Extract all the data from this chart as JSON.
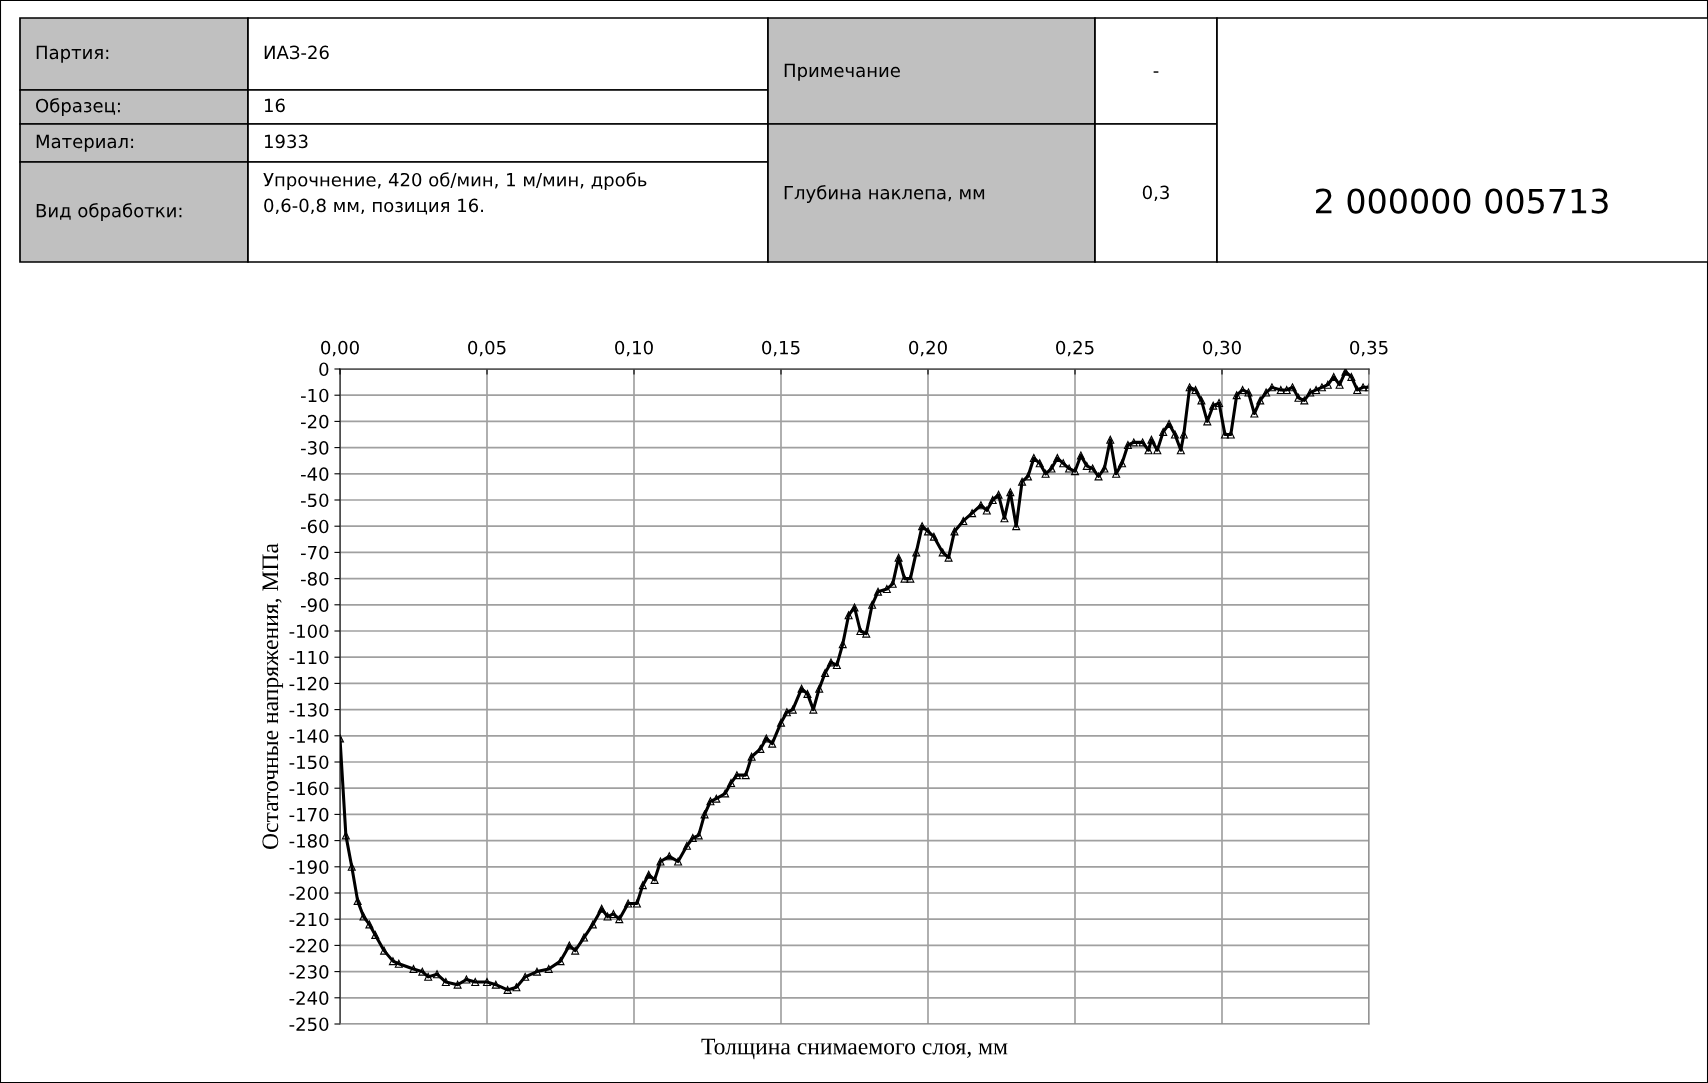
{
  "chart_data": {
    "type": "line",
    "xlabel": "Толщина снимаемого слоя, мм",
    "ylabel": "Остаточные напряжения, МПа",
    "annotations": [
      "Партия:",
      "ИАЗ-26",
      "Примечание",
      "-",
      "Образец:",
      "16",
      "Материал:",
      "1933",
      "Вид обработки:",
      "Упрочнение, 420 об/мин, 1 м/мин, дробь\n0,6-0,8 мм, позиция 16.",
      "Глубина наклепа, мм",
      "0,3",
      "2 000000 005713"
    ],
    "series": [
      {
        "color": "#000000",
        "marker": "triangle",
        "line_style": "solid",
        "x": [
          0.0,
          0.002,
          0.004,
          0.006,
          0.008,
          0.01,
          0.012,
          0.015,
          0.018,
          0.02,
          0.025,
          0.028,
          0.03,
          0.033,
          0.036,
          0.04,
          0.043,
          0.046,
          0.05,
          0.053,
          0.057,
          0.06,
          0.063,
          0.067,
          0.071,
          0.075,
          0.078,
          0.08,
          0.083,
          0.086,
          0.089,
          0.091,
          0.093,
          0.095,
          0.098,
          0.101,
          0.103,
          0.105,
          0.107,
          0.109,
          0.112,
          0.115,
          0.118,
          0.12,
          0.122,
          0.124,
          0.126,
          0.128,
          0.131,
          0.133,
          0.135,
          0.138,
          0.14,
          0.143,
          0.145,
          0.147,
          0.15,
          0.152,
          0.154,
          0.157,
          0.159,
          0.161,
          0.163,
          0.165,
          0.167,
          0.169,
          0.171,
          0.173,
          0.175,
          0.177,
          0.179,
          0.181,
          0.183,
          0.186,
          0.188,
          0.19,
          0.192,
          0.194,
          0.196,
          0.198,
          0.2,
          0.202,
          0.205,
          0.207,
          0.209,
          0.212,
          0.215,
          0.218,
          0.22,
          0.222,
          0.224,
          0.226,
          0.228,
          0.23,
          0.232,
          0.234,
          0.236,
          0.238,
          0.24,
          0.242,
          0.244,
          0.246,
          0.248,
          0.25,
          0.252,
          0.254,
          0.256,
          0.258,
          0.26,
          0.262,
          0.264,
          0.266,
          0.268,
          0.27,
          0.273,
          0.275,
          0.276,
          0.278,
          0.28,
          0.282,
          0.284,
          0.286,
          0.287,
          0.289,
          0.291,
          0.293,
          0.295,
          0.297,
          0.299,
          0.301,
          0.303,
          0.305,
          0.307,
          0.309,
          0.311,
          0.313,
          0.315,
          0.317,
          0.32,
          0.322,
          0.324,
          0.326,
          0.328,
          0.33,
          0.332,
          0.334,
          0.336,
          0.338,
          0.34,
          0.342,
          0.344,
          0.346,
          0.348,
          0.35
        ],
        "values": [
          -141,
          -178,
          -190,
          -203,
          -209,
          -212,
          -216,
          -222,
          -226,
          -227,
          -229,
          -230,
          -232,
          -231,
          -234,
          -235,
          -233,
          -234,
          -234,
          -235,
          -237,
          -236,
          -232,
          -230,
          -229,
          -226,
          -220,
          -222,
          -217,
          -212,
          -206,
          -209,
          -208,
          -210,
          -204,
          -204,
          -197,
          -193,
          -195,
          -188,
          -186,
          -188,
          -182,
          -179,
          -178,
          -170,
          -165,
          -164,
          -162,
          -158,
          -155,
          -155,
          -148,
          -145,
          -141,
          -143,
          -135,
          -131,
          -130,
          -122,
          -124,
          -130,
          -122,
          -116,
          -112,
          -113,
          -105,
          -94,
          -91,
          -100,
          -101,
          -90,
          -85,
          -84,
          -82,
          -72,
          -80,
          -80,
          -70,
          -60,
          -62,
          -64,
          -70,
          -72,
          -62,
          -58,
          -55,
          -52,
          -54,
          -50,
          -48,
          -57,
          -47,
          -60,
          -43,
          -41,
          -34,
          -36,
          -40,
          -38,
          -34,
          -36,
          -38,
          -39,
          -33,
          -37,
          -38,
          -41,
          -38,
          -27,
          -40,
          -36,
          -29,
          -28,
          -28,
          -31,
          -27,
          -31,
          -24,
          -21,
          -25,
          -31,
          -25,
          -7,
          -8,
          -12,
          -20,
          -14,
          -13,
          -25,
          -25,
          -10,
          -8,
          -9,
          -17,
          -12,
          -9,
          -7,
          -8,
          -8,
          -7,
          -11,
          -12,
          -9,
          -8,
          -7,
          -6,
          -3,
          -6,
          -1,
          -3,
          -8,
          -7,
          -7
        ]
      }
    ],
    "xlim": [
      0,
      0.35
    ],
    "xticks": [
      {
        "value": 0,
        "label": "0,00"
      },
      {
        "value": 0.05,
        "label": "0,05"
      },
      {
        "value": 0.1,
        "label": "0,10"
      },
      {
        "value": 0.15,
        "label": "0,15"
      },
      {
        "value": 0.2,
        "label": "0,20"
      },
      {
        "value": 0.25,
        "label": "0,25"
      },
      {
        "value": 0.3,
        "label": "0,30"
      },
      {
        "value": 0.35,
        "label": "0,35"
      }
    ],
    "ylim": [
      -250,
      0
    ],
    "yticks": [
      0,
      -10,
      -20,
      -30,
      -40,
      -50,
      -60,
      -70,
      -80,
      -90,
      -100,
      -110,
      -120,
      -130,
      -140,
      -150,
      -160,
      -170,
      -180,
      -190,
      -200,
      -210,
      -220,
      -230,
      -240,
      -250
    ],
    "grid": true
  }
}
